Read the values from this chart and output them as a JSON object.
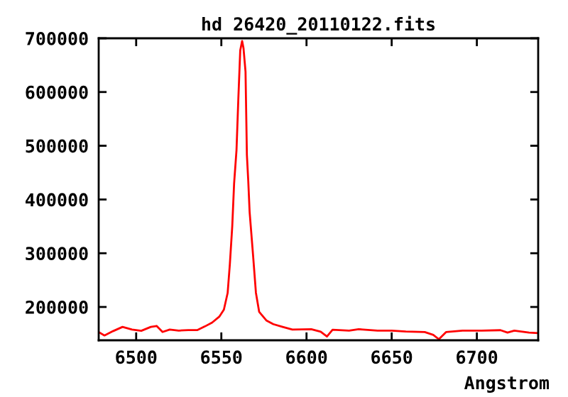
{
  "chart_data": {
    "type": "line",
    "title": "hd 26420_20110122.fits",
    "xlabel": "Angstrom",
    "x": [
      6478,
      6481.4,
      6486.4,
      6492,
      6497.6,
      6503,
      6508.6,
      6512,
      6515.5,
      6519.7,
      6525,
      6530.6,
      6536,
      6540.4,
      6544.6,
      6548.8,
      6551.5,
      6553.7,
      6555,
      6556.4,
      6557.5,
      6558.9,
      6560,
      6561.1,
      6562.2,
      6563,
      6564.2,
      6565,
      6565.8,
      6566.6,
      6568.6,
      6570.3,
      6572.2,
      6576.4,
      6580.5,
      6586,
      6591.7,
      6602.8,
      6608.3,
      6612,
      6615.3,
      6625,
      6630.6,
      6641.7,
      6650,
      6658.3,
      6669.4,
      6674.4,
      6677.7,
      6681.9,
      6691.6,
      6702.8,
      6713.9,
      6718,
      6722,
      6730.6,
      6735.6
    ],
    "series": [
      {
        "color": "#ff0000",
        "values": [
          153300,
          147000,
          155000,
          162900,
          158000,
          155600,
          162900,
          164700,
          153500,
          158000,
          156000,
          157000,
          157000,
          163900,
          171000,
          182000,
          195000,
          226000,
          279600,
          350000,
          430000,
          491800,
          589000,
          677500,
          695000,
          682000,
          637700,
          483000,
          435000,
          377000,
          297000,
          226500,
          191000,
          175000,
          168000,
          162900,
          158000,
          158600,
          154000,
          145000,
          157700,
          156000,
          158600,
          156000,
          156000,
          154200,
          153300,
          148000,
          140000,
          153300,
          156000,
          156000,
          156800,
          152400,
          156000,
          152400,
          151500
        ]
      }
    ],
    "xlim": [
      6478,
      6736
    ],
    "ylim": [
      138000,
      700000
    ],
    "xticks": [
      6500,
      6550,
      6600,
      6650,
      6700
    ],
    "yticks": [
      200000,
      300000,
      400000,
      500000,
      600000,
      700000
    ],
    "grid": false,
    "marker": "none",
    "line_style": "solid"
  }
}
